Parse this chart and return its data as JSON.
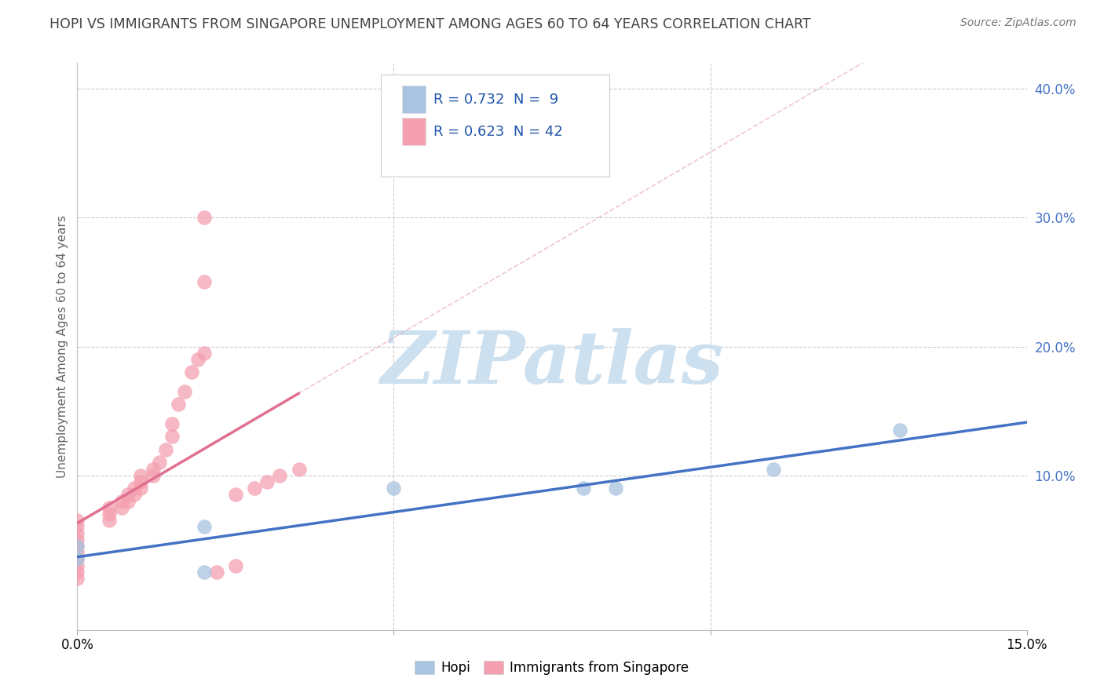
{
  "title": "HOPI VS IMMIGRANTS FROM SINGAPORE UNEMPLOYMENT AMONG AGES 60 TO 64 YEARS CORRELATION CHART",
  "source": "Source: ZipAtlas.com",
  "ylabel": "Unemployment Among Ages 60 to 64 years",
  "xlim": [
    0.0,
    0.15
  ],
  "ylim": [
    -0.02,
    0.42
  ],
  "ytick_labels_right": [
    "",
    "10.0%",
    "20.0%",
    "30.0%",
    "40.0%"
  ],
  "ytick_positions_right": [
    0.0,
    0.1,
    0.2,
    0.3,
    0.4
  ],
  "hopi_x": [
    0.0,
    0.0,
    0.02,
    0.02,
    0.05,
    0.08,
    0.085,
    0.11,
    0.13
  ],
  "hopi_y": [
    0.035,
    0.045,
    0.06,
    0.025,
    0.09,
    0.09,
    0.09,
    0.105,
    0.135
  ],
  "singapore_x": [
    0.0,
    0.0,
    0.0,
    0.0,
    0.0,
    0.0,
    0.0,
    0.0,
    0.0,
    0.0,
    0.005,
    0.005,
    0.005,
    0.007,
    0.007,
    0.008,
    0.008,
    0.009,
    0.009,
    0.01,
    0.01,
    0.01,
    0.012,
    0.012,
    0.013,
    0.014,
    0.015,
    0.015,
    0.016,
    0.017,
    0.018,
    0.019,
    0.02,
    0.02,
    0.02,
    0.022,
    0.025,
    0.025,
    0.028,
    0.03,
    0.032,
    0.035
  ],
  "singapore_y": [
    0.02,
    0.025,
    0.03,
    0.035,
    0.04,
    0.045,
    0.05,
    0.055,
    0.06,
    0.065,
    0.065,
    0.07,
    0.075,
    0.075,
    0.08,
    0.08,
    0.085,
    0.085,
    0.09,
    0.09,
    0.095,
    0.1,
    0.1,
    0.105,
    0.11,
    0.12,
    0.13,
    0.14,
    0.155,
    0.165,
    0.18,
    0.19,
    0.195,
    0.25,
    0.3,
    0.025,
    0.03,
    0.085,
    0.09,
    0.095,
    0.1,
    0.105
  ],
  "hopi_color": "#a8c4e0",
  "singapore_color": "#f4a0b0",
  "hopi_line_color": "#4472c4",
  "singapore_line_color": "#e07090",
  "singapore_dash_color": "#e8b0c0",
  "hopi_R": 0.732,
  "hopi_N": 9,
  "singapore_R": 0.623,
  "singapore_N": 42,
  "watermark": "ZIPatlas",
  "watermark_color": "#cce0f0",
  "grid_color": "#cccccc",
  "background_color": "#ffffff",
  "title_color": "#444444"
}
